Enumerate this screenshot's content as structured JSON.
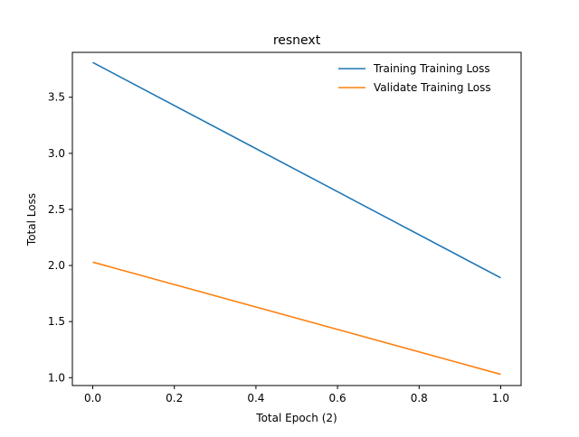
{
  "chart_data": {
    "type": "line",
    "title": "resnext",
    "xlabel": "Total Epoch (2)",
    "ylabel": "Total Loss",
    "xlim": [
      -0.05,
      1.05
    ],
    "ylim": [
      0.93,
      3.9
    ],
    "x_ticks": [
      0.0,
      0.2,
      0.4,
      0.6,
      0.8,
      1.0
    ],
    "x_tick_labels": [
      "0.0",
      "0.2",
      "0.4",
      "0.6",
      "0.8",
      "1.0"
    ],
    "y_ticks": [
      1.0,
      1.5,
      2.0,
      2.5,
      3.0,
      3.5
    ],
    "y_tick_labels": [
      "1.0",
      "1.5",
      "2.0",
      "2.5",
      "3.0",
      "3.5"
    ],
    "grid": false,
    "legend_position": "top-right",
    "series": [
      {
        "name": "Training Training Loss",
        "color": "#1f77b4",
        "x": [
          0,
          1
        ],
        "y": [
          3.81,
          1.89
        ]
      },
      {
        "name": "Validate Training Loss",
        "color": "#ff7f0e",
        "x": [
          0,
          1
        ],
        "y": [
          2.03,
          1.03
        ]
      }
    ]
  }
}
